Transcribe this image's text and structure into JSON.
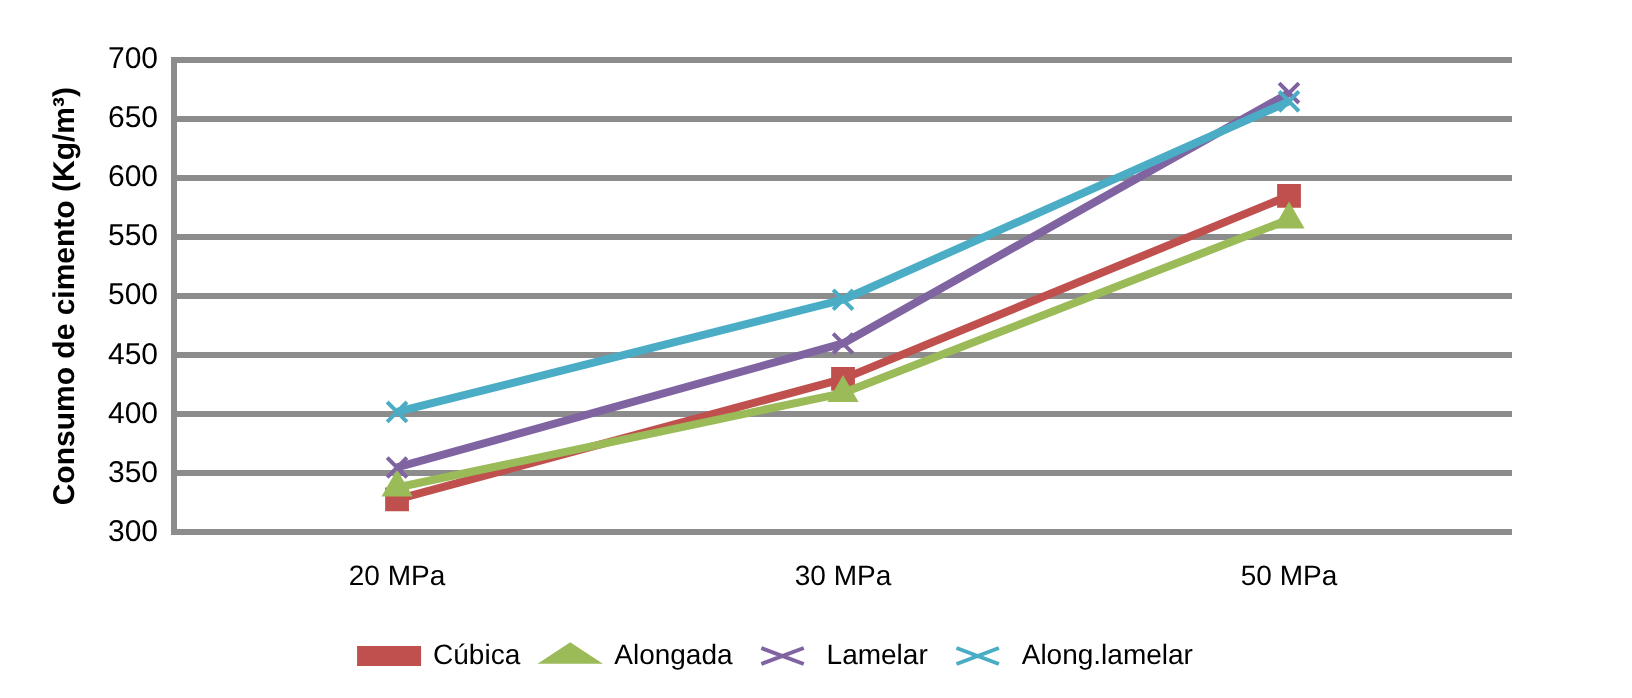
{
  "chart_data": {
    "type": "line",
    "ylabel": "Consumo de cimento (Kg/m³)",
    "categories": [
      "20 MPa",
      "30 MPa",
      "50 MPa"
    ],
    "series": [
      {
        "name": "Cúbica",
        "color": "#c0504d",
        "marker": "square",
        "values": [
          328,
          430,
          585
        ]
      },
      {
        "name": "Alongada",
        "color": "#9bbb59",
        "marker": "triangle",
        "values": [
          338,
          418,
          565
        ]
      },
      {
        "name": "Lamelar",
        "color": "#8064a2",
        "marker": "cross",
        "values": [
          355,
          460,
          672
        ]
      },
      {
        "name": "Along.lamelar",
        "color": "#4bacc6",
        "marker": "cross",
        "values": [
          402,
          497,
          665
        ]
      }
    ],
    "ylim": [
      300,
      700
    ],
    "yticks": [
      300,
      350,
      400,
      450,
      500,
      550,
      600,
      650,
      700
    ],
    "grid": "y",
    "legend": "bottom"
  }
}
